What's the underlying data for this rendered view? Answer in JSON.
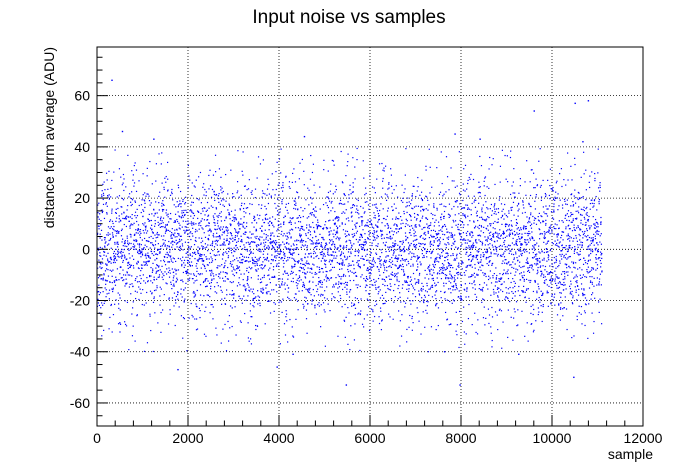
{
  "chart_data": {
    "type": "scatter",
    "title": "Input noise vs samples",
    "xlabel": "sample",
    "ylabel": "distance form average (ADU)",
    "xlim": [
      0,
      12000
    ],
    "ylim": [
      -69,
      79
    ],
    "x_ticks": [
      0,
      2000,
      4000,
      6000,
      8000,
      10000,
      12000
    ],
    "y_ticks": [
      -60,
      -40,
      -20,
      0,
      20,
      40,
      60
    ],
    "grid": true,
    "legend": "none",
    "marker_color": "#0000ff",
    "series": [
      {
        "x_range": [
          0,
          11100
        ],
        "point_count": 5550,
        "mean": 0,
        "stddev": 14,
        "outliers": [
          {
            "x": 330,
            "y": 66
          },
          {
            "x": 560,
            "y": 46
          },
          {
            "x": 9610,
            "y": 54
          },
          {
            "x": 10510,
            "y": 57
          },
          {
            "x": 10800,
            "y": 58
          },
          {
            "x": 10680,
            "y": 42
          },
          {
            "x": 4560,
            "y": 44
          },
          {
            "x": 7870,
            "y": 45
          },
          {
            "x": 8420,
            "y": 43
          },
          {
            "x": 1250,
            "y": 43
          },
          {
            "x": 1780,
            "y": -47
          },
          {
            "x": 3960,
            "y": -46
          },
          {
            "x": 5480,
            "y": -53
          },
          {
            "x": 7980,
            "y": -53
          },
          {
            "x": 10480,
            "y": -50
          },
          {
            "x": 4310,
            "y": -41
          },
          {
            "x": 7640,
            "y": -40
          },
          {
            "x": 9270,
            "y": -41
          }
        ]
      }
    ]
  }
}
